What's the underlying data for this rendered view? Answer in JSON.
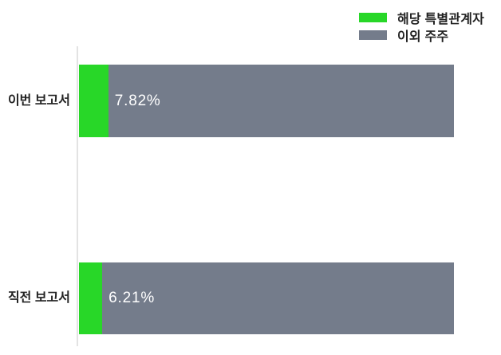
{
  "colors": {
    "special_related_party": "#28D728",
    "other_shareholders": "#747C8B",
    "axis_line": "#E3E3E3",
    "category_label_text": "#222222",
    "value_label_text": "#FFFFFF"
  },
  "legend": {
    "items": [
      {
        "label": "해당 특별관계자",
        "color": "#28D728"
      },
      {
        "label": "이외 주주",
        "color": "#747C8B"
      }
    ]
  },
  "chart_data": {
    "type": "bar",
    "orientation": "horizontal",
    "stacked": true,
    "title": "",
    "xlabel": "",
    "ylabel": "",
    "categories": [
      "이번 보고서",
      "직전 보고서"
    ],
    "series": [
      {
        "name": "해당 특별관계자",
        "color": "#28D728",
        "values": [
          7.82,
          6.21
        ]
      },
      {
        "name": "이외 주주",
        "color": "#747C8B",
        "values": [
          92.18,
          93.79
        ]
      }
    ],
    "value_labels": [
      "7.82%",
      "6.21%"
    ],
    "xlim": [
      0,
      100
    ],
    "grid": false,
    "legend_position": "top-right"
  }
}
